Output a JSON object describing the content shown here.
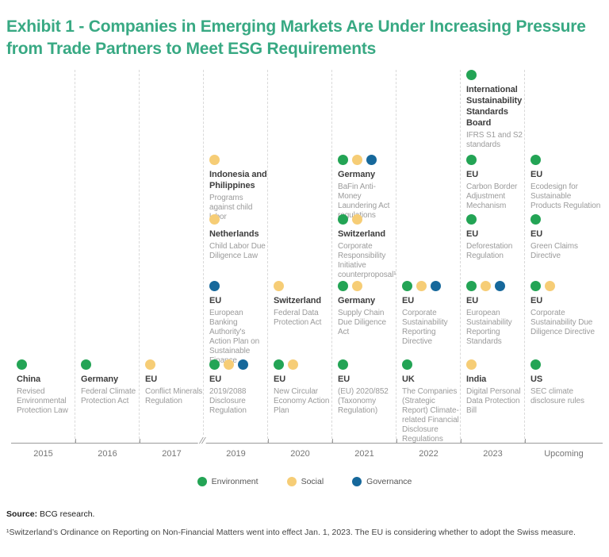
{
  "title": "Exhibit 1 - Companies in Emerging Markets Are Under Increasing Pressure from Trade Partners to Meet ESG Requirements",
  "colors": {
    "title_green": "#38a983",
    "environment": "#23a455",
    "social": "#f6cd76",
    "governance": "#16689b",
    "separator": "#d9d9d9",
    "axis": "#9b9b9b"
  },
  "axis": {
    "break_symbol": "//"
  },
  "legend": {
    "items": [
      {
        "label": "Environment",
        "type": "environment"
      },
      {
        "label": "Social",
        "type": "social"
      },
      {
        "label": "Governance",
        "type": "governance"
      }
    ]
  },
  "footer": {
    "source_label": "Source:",
    "source_text": " BCG research.",
    "footnote": "¹Switzerland’s Ordinance on Reporting on Non-Financial Matters went into effect Jan. 1, 2023. The EU is considering whether to adopt the Swiss measure."
  },
  "chart_data": {
    "type": "timeline",
    "title": "Exhibit 1 - Companies in Emerging Markets Are Under Increasing Pressure from Trade Partners to Meet ESG Requirements",
    "categories": [
      "2015",
      "2016",
      "2017",
      "2019",
      "2020",
      "2021",
      "2022",
      "2023",
      "Upcoming"
    ],
    "legend": [
      "Environment",
      "Social",
      "Governance"
    ],
    "axis_break_between": [
      "2017",
      "2019"
    ],
    "columns": [
      {
        "year": "2015",
        "entries": [
          {
            "row": 4,
            "title": "China",
            "desc": "Revised Environmental Protection Law",
            "dots": [
              "environment"
            ]
          }
        ]
      },
      {
        "year": "2016",
        "entries": [
          {
            "row": 4,
            "title": "Germany",
            "desc": "Federal Climate Protection Act",
            "dots": [
              "environment"
            ]
          }
        ]
      },
      {
        "year": "2017",
        "entries": [
          {
            "row": 4,
            "title": "EU",
            "desc": "Conflict Minerals Regulation",
            "dots": [
              "social"
            ]
          }
        ]
      },
      {
        "year": "2019",
        "entries": [
          {
            "row": 1,
            "title": "Indonesia and Philippines",
            "desc": "Programs against child labor",
            "dots": [
              "social"
            ]
          },
          {
            "row": 2,
            "title": "Netherlands",
            "desc": "Child Labor Due Diligence Law",
            "dots": [
              "social"
            ]
          },
          {
            "row": 3,
            "title": "EU",
            "desc": "European Banking Authority's Action Plan on Sustainable Finance",
            "dots": [
              "governance"
            ]
          },
          {
            "row": 4,
            "title": "EU",
            "desc": "2019/2088 Disclosure Regulation",
            "dots": [
              "environment",
              "social",
              "governance"
            ]
          }
        ]
      },
      {
        "year": "2020",
        "entries": [
          {
            "row": 3,
            "title": "Switzerland",
            "desc": "Federal Data Protection Act",
            "dots": [
              "social"
            ]
          },
          {
            "row": 4,
            "title": "EU",
            "desc": "New Circular Economy Action Plan",
            "dots": [
              "environment",
              "social"
            ]
          }
        ]
      },
      {
        "year": "2021",
        "entries": [
          {
            "row": 1,
            "title": "Germany",
            "desc": "BaFin Anti-Money Laundering Act regulations",
            "dots": [
              "environment",
              "social",
              "governance"
            ]
          },
          {
            "row": 2,
            "title": "Switzerland",
            "desc": "Corporate Responsibility Initiative counterproposal¹",
            "dots": [
              "environment",
              "social"
            ]
          },
          {
            "row": 3,
            "title": "Germany",
            "desc": "Supply Chain Due Diligence Act",
            "dots": [
              "environment",
              "social"
            ]
          },
          {
            "row": 4,
            "title": "EU",
            "desc": "(EU) 2020/852 (Taxonomy Regulation)",
            "dots": [
              "environment"
            ]
          }
        ]
      },
      {
        "year": "2022",
        "entries": [
          {
            "row": 3,
            "title": "EU",
            "desc": "Corporate Sustainability Reporting Directive",
            "dots": [
              "environment",
              "social",
              "governance"
            ]
          },
          {
            "row": 4,
            "title": "UK",
            "desc": "The Companies (Strategic Report) Climate-related Financial Disclosure Regulations",
            "dots": [
              "environment"
            ]
          }
        ]
      },
      {
        "year": "2023",
        "entries": [
          {
            "row": 0,
            "title": "International Sustainability Standards Board",
            "desc": "IFRS S1 and S2 standards",
            "dots": [
              "environment"
            ]
          },
          {
            "row": 1,
            "title": "EU",
            "desc": "Carbon Border Adjustment Mechanism",
            "dots": [
              "environment"
            ]
          },
          {
            "row": 2,
            "title": "EU",
            "desc": "Deforestation Regulation",
            "dots": [
              "environment"
            ]
          },
          {
            "row": 3,
            "title": "EU",
            "desc": "European Sustainability Reporting Standards",
            "dots": [
              "environment",
              "social",
              "governance"
            ]
          },
          {
            "row": 4,
            "title": "India",
            "desc": "Digital Personal Data Protection Bill",
            "dots": [
              "social"
            ]
          }
        ]
      },
      {
        "year": "Upcoming",
        "entries": [
          {
            "row": 1,
            "title": "EU",
            "desc": "Ecodesign for Sustainable Products Regulation",
            "dots": [
              "environment"
            ]
          },
          {
            "row": 2,
            "title": "EU",
            "desc": "Green Claims Directive",
            "dots": [
              "environment"
            ]
          },
          {
            "row": 3,
            "title": "EU",
            "desc": "Corporate Sustainability Due Diligence Directive",
            "dots": [
              "environment",
              "social"
            ]
          },
          {
            "row": 4,
            "title": "US",
            "desc": "SEC climate disclosure rules",
            "dots": [
              "environment"
            ]
          }
        ]
      }
    ]
  }
}
